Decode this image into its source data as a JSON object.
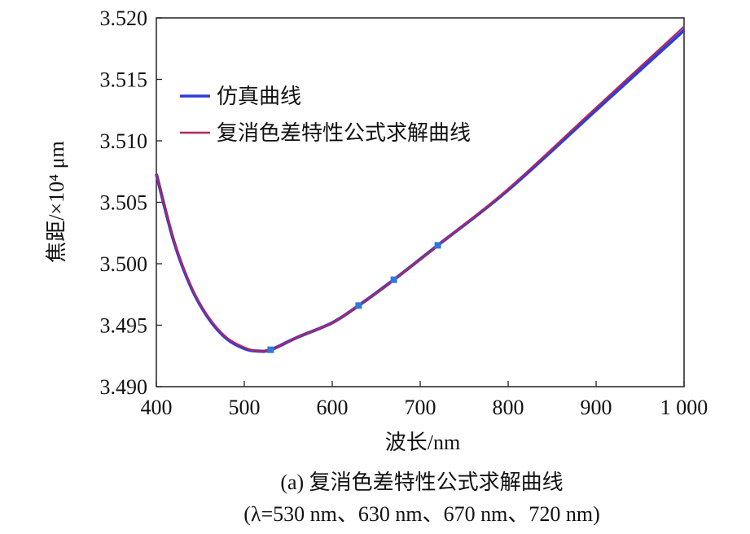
{
  "chart_data": {
    "type": "line",
    "title": "",
    "xlabel": "波长/nm",
    "ylabel": "焦距/×10⁴ μm",
    "xlim": [
      400,
      1000
    ],
    "ylim": [
      3.49,
      3.52
    ],
    "x_ticks": [
      400,
      500,
      600,
      700,
      800,
      900,
      1000
    ],
    "x_tick_labels": [
      "400",
      "500",
      "600",
      "700",
      "800",
      "900",
      "1 000"
    ],
    "y_ticks": [
      3.49,
      3.495,
      3.5,
      3.505,
      3.51,
      3.515,
      3.52
    ],
    "y_tick_labels": [
      "3.490",
      "3.495",
      "3.500",
      "3.505",
      "3.510",
      "3.515",
      "3.520"
    ],
    "grid": false,
    "legend_position": "top-left",
    "series": [
      {
        "name": "仿真曲线",
        "color": "#2f3cdb",
        "x": [
          400,
          420,
          440,
          460,
          480,
          500,
          515,
          530,
          560,
          600,
          630,
          670,
          720,
          800,
          900,
          1000
        ],
        "y": [
          3.5073,
          3.5018,
          3.498,
          3.4955,
          3.4939,
          3.4931,
          3.4929,
          3.493,
          3.494,
          3.4952,
          3.4966,
          3.4987,
          3.5015,
          3.506,
          3.5125,
          3.519
        ]
      },
      {
        "name": "复消色差特性公式求解曲线",
        "color": "#b0285a",
        "x": [
          400,
          420,
          440,
          460,
          480,
          500,
          515,
          530,
          560,
          600,
          630,
          670,
          720,
          800,
          900,
          1000
        ],
        "y": [
          3.5073,
          3.5019,
          3.4981,
          3.4956,
          3.494,
          3.4932,
          3.4929,
          3.493,
          3.494,
          3.4952,
          3.4966,
          3.4987,
          3.5015,
          3.5061,
          3.5127,
          3.5193
        ]
      }
    ],
    "markers": {
      "color": "#2f7ad8",
      "x": [
        530,
        630,
        670,
        720
      ],
      "y": [
        3.493,
        3.4966,
        3.4987,
        3.5015
      ]
    }
  },
  "caption": {
    "line1": "(a) 复消色差特性公式求解曲线",
    "line2": "(λ=530 nm、630 nm、670 nm、720 nm)"
  }
}
